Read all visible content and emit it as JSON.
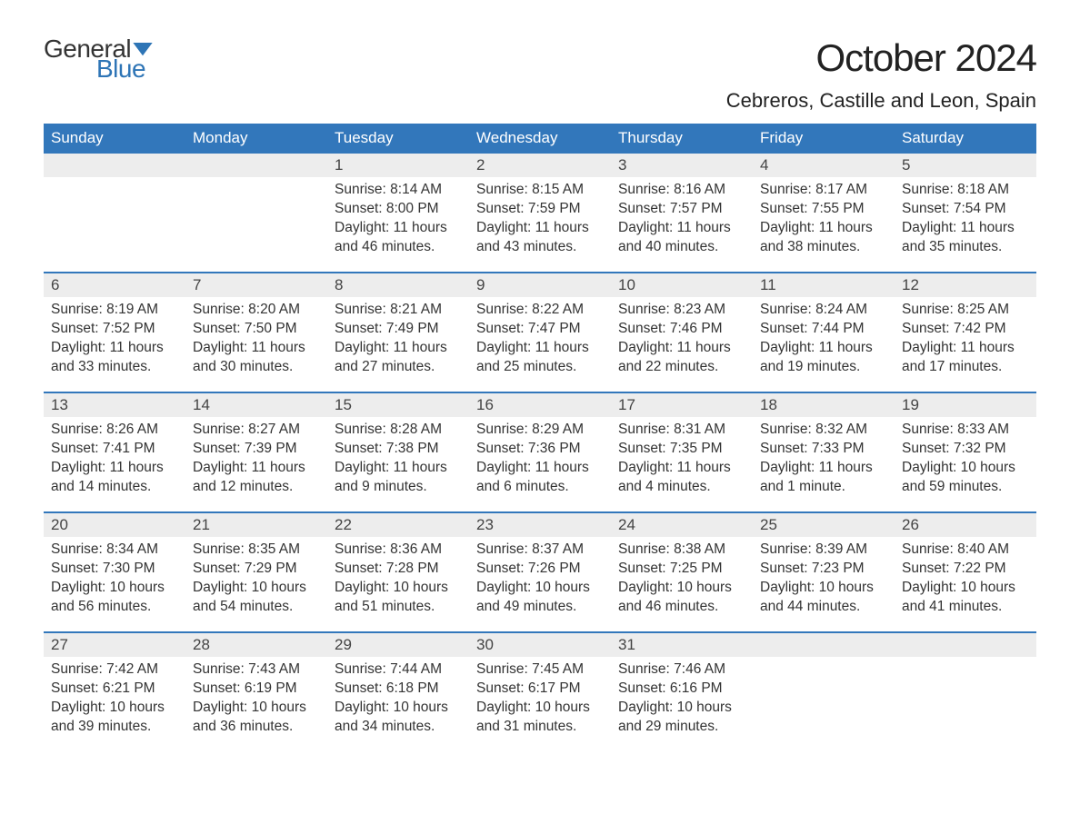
{
  "logo": {
    "text1": "General",
    "text2": "Blue",
    "flag_color": "#2e75b6"
  },
  "title": "October 2024",
  "location": "Cebreros, Castille and Leon, Spain",
  "colors": {
    "header_bg": "#3277bb",
    "header_text": "#ffffff",
    "daynum_bg": "#ededed",
    "border": "#3277bb",
    "body_text": "#333333",
    "logo_blue": "#2e75b6"
  },
  "weekdays": [
    "Sunday",
    "Monday",
    "Tuesday",
    "Wednesday",
    "Thursday",
    "Friday",
    "Saturday"
  ],
  "weeks": [
    [
      null,
      null,
      {
        "n": "1",
        "sr": "8:14 AM",
        "ss": "8:00 PM",
        "dl": "11 hours and 46 minutes."
      },
      {
        "n": "2",
        "sr": "8:15 AM",
        "ss": "7:59 PM",
        "dl": "11 hours and 43 minutes."
      },
      {
        "n": "3",
        "sr": "8:16 AM",
        "ss": "7:57 PM",
        "dl": "11 hours and 40 minutes."
      },
      {
        "n": "4",
        "sr": "8:17 AM",
        "ss": "7:55 PM",
        "dl": "11 hours and 38 minutes."
      },
      {
        "n": "5",
        "sr": "8:18 AM",
        "ss": "7:54 PM",
        "dl": "11 hours and 35 minutes."
      }
    ],
    [
      {
        "n": "6",
        "sr": "8:19 AM",
        "ss": "7:52 PM",
        "dl": "11 hours and 33 minutes."
      },
      {
        "n": "7",
        "sr": "8:20 AM",
        "ss": "7:50 PM",
        "dl": "11 hours and 30 minutes."
      },
      {
        "n": "8",
        "sr": "8:21 AM",
        "ss": "7:49 PM",
        "dl": "11 hours and 27 minutes."
      },
      {
        "n": "9",
        "sr": "8:22 AM",
        "ss": "7:47 PM",
        "dl": "11 hours and 25 minutes."
      },
      {
        "n": "10",
        "sr": "8:23 AM",
        "ss": "7:46 PM",
        "dl": "11 hours and 22 minutes."
      },
      {
        "n": "11",
        "sr": "8:24 AM",
        "ss": "7:44 PM",
        "dl": "11 hours and 19 minutes."
      },
      {
        "n": "12",
        "sr": "8:25 AM",
        "ss": "7:42 PM",
        "dl": "11 hours and 17 minutes."
      }
    ],
    [
      {
        "n": "13",
        "sr": "8:26 AM",
        "ss": "7:41 PM",
        "dl": "11 hours and 14 minutes."
      },
      {
        "n": "14",
        "sr": "8:27 AM",
        "ss": "7:39 PM",
        "dl": "11 hours and 12 minutes."
      },
      {
        "n": "15",
        "sr": "8:28 AM",
        "ss": "7:38 PM",
        "dl": "11 hours and 9 minutes."
      },
      {
        "n": "16",
        "sr": "8:29 AM",
        "ss": "7:36 PM",
        "dl": "11 hours and 6 minutes."
      },
      {
        "n": "17",
        "sr": "8:31 AM",
        "ss": "7:35 PM",
        "dl": "11 hours and 4 minutes."
      },
      {
        "n": "18",
        "sr": "8:32 AM",
        "ss": "7:33 PM",
        "dl": "11 hours and 1 minute."
      },
      {
        "n": "19",
        "sr": "8:33 AM",
        "ss": "7:32 PM",
        "dl": "10 hours and 59 minutes."
      }
    ],
    [
      {
        "n": "20",
        "sr": "8:34 AM",
        "ss": "7:30 PM",
        "dl": "10 hours and 56 minutes."
      },
      {
        "n": "21",
        "sr": "8:35 AM",
        "ss": "7:29 PM",
        "dl": "10 hours and 54 minutes."
      },
      {
        "n": "22",
        "sr": "8:36 AM",
        "ss": "7:28 PM",
        "dl": "10 hours and 51 minutes."
      },
      {
        "n": "23",
        "sr": "8:37 AM",
        "ss": "7:26 PM",
        "dl": "10 hours and 49 minutes."
      },
      {
        "n": "24",
        "sr": "8:38 AM",
        "ss": "7:25 PM",
        "dl": "10 hours and 46 minutes."
      },
      {
        "n": "25",
        "sr": "8:39 AM",
        "ss": "7:23 PM",
        "dl": "10 hours and 44 minutes."
      },
      {
        "n": "26",
        "sr": "8:40 AM",
        "ss": "7:22 PM",
        "dl": "10 hours and 41 minutes."
      }
    ],
    [
      {
        "n": "27",
        "sr": "7:42 AM",
        "ss": "6:21 PM",
        "dl": "10 hours and 39 minutes."
      },
      {
        "n": "28",
        "sr": "7:43 AM",
        "ss": "6:19 PM",
        "dl": "10 hours and 36 minutes."
      },
      {
        "n": "29",
        "sr": "7:44 AM",
        "ss": "6:18 PM",
        "dl": "10 hours and 34 minutes."
      },
      {
        "n": "30",
        "sr": "7:45 AM",
        "ss": "6:17 PM",
        "dl": "10 hours and 31 minutes."
      },
      {
        "n": "31",
        "sr": "7:46 AM",
        "ss": "6:16 PM",
        "dl": "10 hours and 29 minutes."
      },
      null,
      null
    ]
  ],
  "labels": {
    "sunrise": "Sunrise: ",
    "sunset": "Sunset: ",
    "daylight": "Daylight: "
  }
}
